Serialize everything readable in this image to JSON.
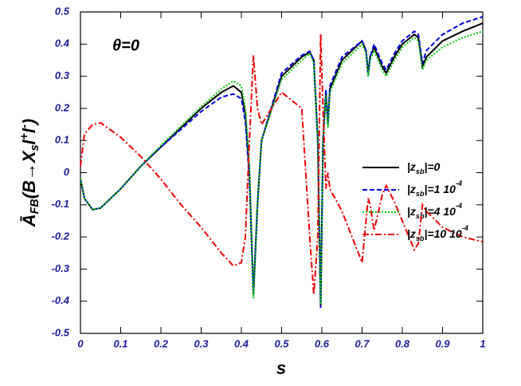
{
  "chart_data": {
    "type": "line",
    "x_label": "s",
    "y_label": [
      "Ā",
      "FB",
      "(B→X",
      "s",
      "l",
      "+",
      "l",
      "-",
      ")"
    ],
    "annotation": "θ=0",
    "x": [
      0,
      0.01,
      0.03,
      0.05,
      0.1,
      0.15,
      0.2,
      0.25,
      0.3,
      0.35,
      0.38,
      0.4,
      0.41,
      0.42,
      0.43,
      0.44,
      0.45,
      0.5,
      0.55,
      0.57,
      0.58,
      0.59,
      0.597,
      0.603,
      0.61,
      0.615,
      0.62,
      0.65,
      0.7,
      0.71,
      0.715,
      0.72,
      0.73,
      0.75,
      0.76,
      0.78,
      0.8,
      0.83,
      0.84,
      0.85,
      0.86,
      0.9,
      0.95,
      1
    ],
    "series": [
      {
        "name": [
          "|z",
          "sb",
          "|=0"
        ],
        "color": "#000000",
        "dash": "none",
        "values": [
          -0.02,
          -0.08,
          -0.115,
          -0.11,
          -0.05,
          0.02,
          0.08,
          0.14,
          0.2,
          0.25,
          0.27,
          0.25,
          0.18,
          0.0,
          -0.38,
          -0.1,
          0.1,
          0.3,
          0.36,
          0.375,
          0.35,
          0.1,
          -0.42,
          0.1,
          0.25,
          0.15,
          0.26,
          0.35,
          0.41,
          0.38,
          0.31,
          0.36,
          0.39,
          0.33,
          0.31,
          0.36,
          0.4,
          0.43,
          0.42,
          0.33,
          0.36,
          0.41,
          0.44,
          0.465
        ]
      },
      {
        "name": [
          "|z",
          "sb",
          "|=1  10",
          "-4"
        ],
        "color": "#0000dd",
        "dash": "6,3",
        "values": [
          -0.02,
          -0.08,
          -0.115,
          -0.11,
          -0.05,
          0.02,
          0.08,
          0.135,
          0.19,
          0.235,
          0.245,
          0.23,
          0.16,
          -0.02,
          -0.38,
          -0.1,
          0.1,
          0.31,
          0.365,
          0.378,
          0.35,
          0.1,
          -0.42,
          0.1,
          0.26,
          0.15,
          0.27,
          0.36,
          0.41,
          0.38,
          0.3,
          0.36,
          0.4,
          0.34,
          0.32,
          0.37,
          0.41,
          0.44,
          0.43,
          0.34,
          0.38,
          0.43,
          0.465,
          0.485
        ]
      },
      {
        "name": [
          "|z",
          "sb",
          "|=4  10",
          "-4"
        ],
        "color": "#00cc00",
        "dash": "2,2",
        "values": [
          -0.02,
          -0.08,
          -0.115,
          -0.11,
          -0.05,
          0.02,
          0.085,
          0.145,
          0.205,
          0.26,
          0.285,
          0.27,
          0.2,
          0.02,
          -0.39,
          -0.1,
          0.1,
          0.29,
          0.35,
          0.37,
          0.34,
          0.1,
          -0.41,
          0.1,
          0.24,
          0.14,
          0.25,
          0.34,
          0.4,
          0.37,
          0.3,
          0.35,
          0.38,
          0.32,
          0.3,
          0.35,
          0.39,
          0.42,
          0.41,
          0.32,
          0.35,
          0.39,
          0.42,
          0.44
        ]
      },
      {
        "name": [
          "|z",
          "sb",
          "|=10  10",
          "-4"
        ],
        "color": "#ee0000",
        "dash": "8,3,2,3",
        "values": [
          0.02,
          0.12,
          0.15,
          0.155,
          0.11,
          0.05,
          -0.02,
          -0.1,
          -0.17,
          -0.25,
          -0.29,
          -0.28,
          -0.2,
          0.1,
          0.365,
          0.2,
          0.15,
          0.25,
          0.2,
          -0.2,
          -0.38,
          -0.2,
          0.43,
          0.2,
          -0.05,
          0.0,
          -0.05,
          -0.12,
          -0.28,
          -0.15,
          -0.08,
          -0.1,
          -0.18,
          -0.07,
          -0.04,
          -0.09,
          -0.15,
          -0.24,
          -0.22,
          -0.1,
          -0.12,
          -0.17,
          -0.2,
          -0.215
        ]
      }
    ],
    "xlim": [
      0,
      1
    ],
    "xticks": [
      0,
      0.1,
      0.2,
      0.3,
      0.4,
      0.5,
      0.6,
      0.7,
      0.8,
      0.9,
      1
    ],
    "ylim": [
      -0.5,
      0.5
    ],
    "yticks": [
      -0.5,
      -0.4,
      -0.3,
      -0.2,
      -0.1,
      0,
      0.1,
      0.2,
      0.3,
      0.4,
      0.5
    ],
    "legend": "right"
  }
}
